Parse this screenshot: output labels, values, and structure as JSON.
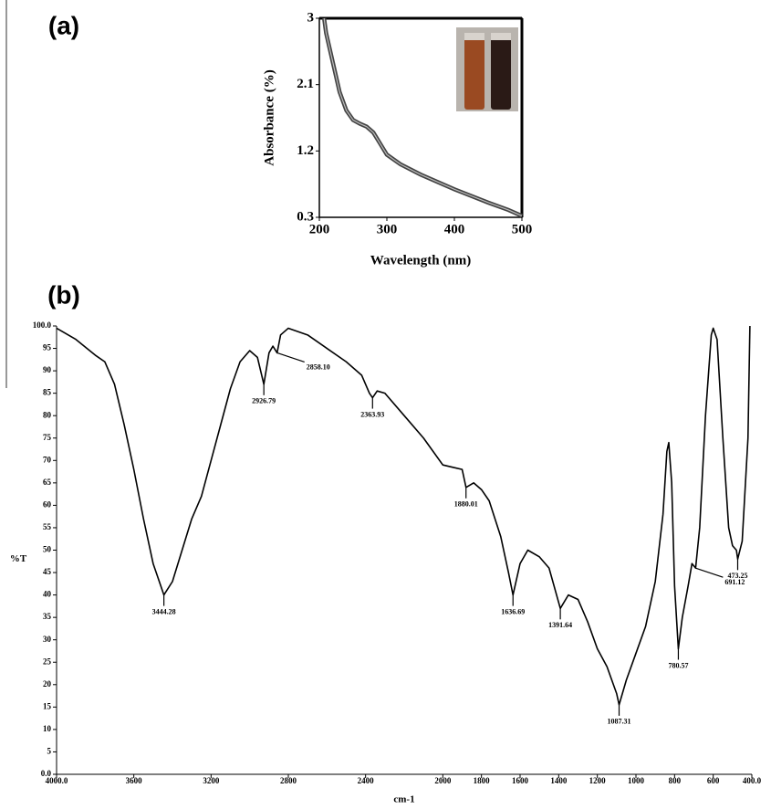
{
  "chart_data": [
    {
      "type": "line",
      "panel_label": "(a)",
      "x_label": "Wavelength (nm)",
      "y_label": "Absorbance (%)",
      "x": [
        207,
        210,
        220,
        230,
        240,
        250,
        260,
        270,
        280,
        290,
        300,
        320,
        350,
        400,
        450,
        480,
        500
      ],
      "values": [
        3,
        2.8,
        2.4,
        2.0,
        1.75,
        1.62,
        1.57,
        1.53,
        1.45,
        1.3,
        1.15,
        1.02,
        0.88,
        0.68,
        0.5,
        0.4,
        0.32
      ],
      "color": "#444444",
      "xlim": [
        200,
        500
      ],
      "xticks": [
        200,
        300,
        400,
        500
      ],
      "ylim": [
        0.3,
        3
      ],
      "yticks": [
        0.3,
        1.2,
        2.1,
        3
      ],
      "grid": false
    },
    {
      "type": "line",
      "panel_label": "(b)",
      "x_label": "cm-1",
      "y_label": "%T",
      "x": [
        4000,
        3900,
        3800,
        3750,
        3700,
        3650,
        3600,
        3550,
        3500,
        3444.28,
        3400,
        3350,
        3300,
        3250,
        3200,
        3150,
        3100,
        3050,
        3000,
        2960,
        2926.79,
        2900,
        2880,
        2858.1,
        2840,
        2800,
        2700,
        2600,
        2500,
        2420,
        2380,
        2363.93,
        2340,
        2300,
        2200,
        2100,
        2000,
        1950,
        1900,
        1880.01,
        1840,
        1800,
        1760,
        1700,
        1660,
        1636.69,
        1600,
        1560,
        1500,
        1450,
        1391.64,
        1350,
        1300,
        1250,
        1200,
        1150,
        1100,
        1087.31,
        1050,
        1000,
        950,
        900,
        860,
        840,
        830,
        815,
        800,
        780.57,
        760,
        730,
        710,
        691.12,
        670,
        640,
        610,
        600,
        580,
        550,
        520,
        500,
        480,
        473.25,
        450,
        420,
        410
      ],
      "values": [
        99.5,
        97,
        93.5,
        92,
        87,
        78,
        68,
        57,
        47,
        40,
        43,
        50,
        57,
        62,
        70,
        78,
        86,
        92,
        94.5,
        93,
        87,
        94,
        95.5,
        94,
        98,
        99.5,
        98,
        95,
        92,
        89,
        85,
        84,
        85.5,
        85,
        80,
        75,
        69,
        68.5,
        68,
        64,
        65,
        63.5,
        61,
        53,
        45,
        40,
        47,
        50,
        48.5,
        46,
        37,
        40,
        39,
        34,
        28,
        24,
        18,
        15.5,
        21,
        27,
        33,
        43,
        58,
        72,
        74,
        65,
        42,
        28,
        35,
        42,
        47,
        46,
        55,
        80,
        98,
        99.5,
        97,
        75,
        55,
        51,
        50,
        48,
        52,
        75,
        100
      ],
      "color": "#000000",
      "xlim": [
        4000,
        400
      ],
      "xticks": [
        {
          "value": 4000,
          "label": "4000.0"
        },
        3600,
        3200,
        2800,
        2400,
        2000,
        1800,
        1600,
        1400,
        1200,
        1000,
        800,
        600,
        {
          "value": 400,
          "label": "400.0"
        }
      ],
      "ylim": [
        0,
        100
      ],
      "yticks": [
        {
          "value": 0,
          "label": "0.0"
        },
        5,
        10,
        15,
        20,
        25,
        30,
        35,
        40,
        45,
        50,
        55,
        60,
        65,
        70,
        75,
        80,
        85,
        90,
        95,
        {
          "value": 100,
          "label": "100.0"
        }
      ],
      "grid": false,
      "annotations": [
        {
          "label": "3444.28",
          "x": 3444.28,
          "y": 40
        },
        {
          "label": "2926.79",
          "x": 2926.79,
          "y": 87
        },
        {
          "label": "2858.10",
          "x": 2858.1,
          "y": 94
        },
        {
          "label": "2363.93",
          "x": 2363.93,
          "y": 84
        },
        {
          "label": "1880.01",
          "x": 1880.01,
          "y": 64
        },
        {
          "label": "1636.69",
          "x": 1636.69,
          "y": 40
        },
        {
          "label": "1391.64",
          "x": 1391.64,
          "y": 37
        },
        {
          "label": "1087.31",
          "x": 1087.31,
          "y": 15.5
        },
        {
          "label": "780.57",
          "x": 780.57,
          "y": 28
        },
        {
          "label": "691.12",
          "x": 691.12,
          "y": 46
        },
        {
          "label": "473.25",
          "x": 473.25,
          "y": 48
        }
      ]
    }
  ]
}
